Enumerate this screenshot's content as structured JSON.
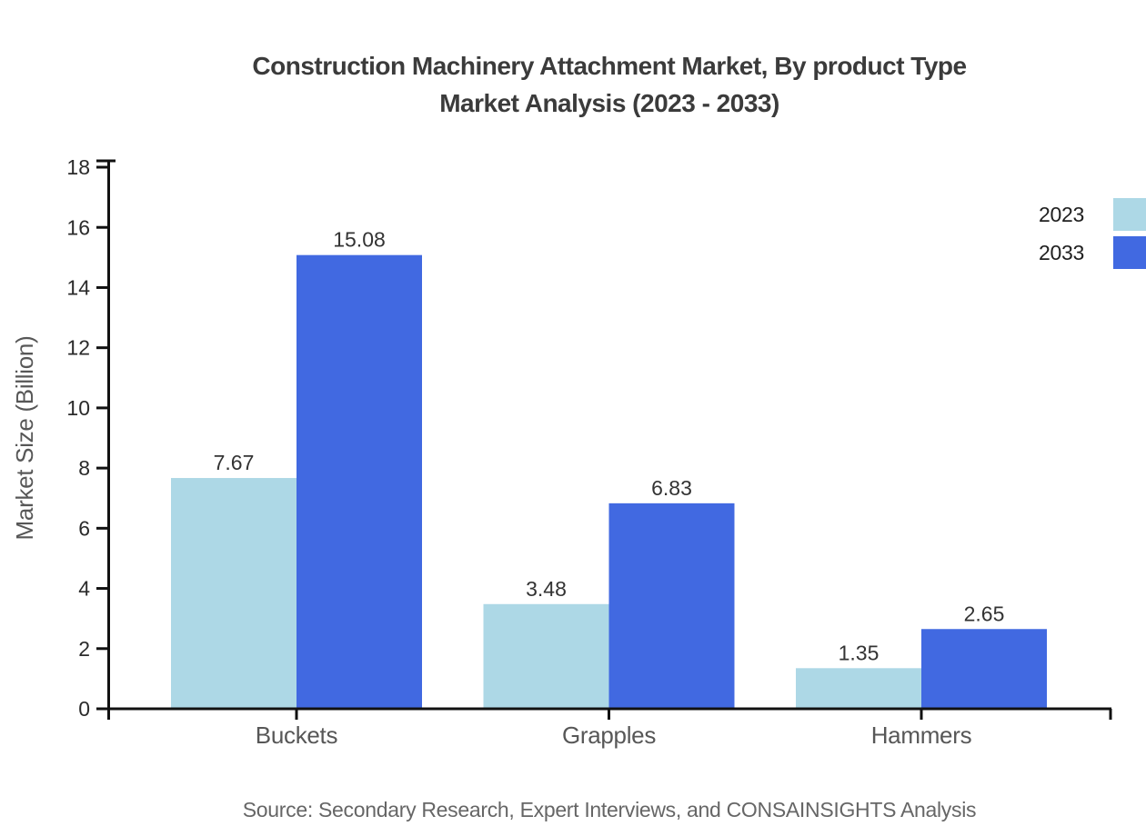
{
  "title": {
    "line1": "Construction Machinery Attachment Market, By product Type",
    "line2": "Market Analysis (2023 - 2033)"
  },
  "source_note": "Source: Secondary Research, Expert Interviews, and CONSAINSIGHTS Analysis",
  "colors": {
    "series_2023": "#ADD8E6",
    "series_2033": "#4169E1",
    "axis": "#111111",
    "title_text": "#3B3B3B",
    "tick_label": "#2B2B2B",
    "value_label": "#333333",
    "category_label": "#575757",
    "axis_title": "#575757",
    "source_text": "#666666",
    "background": "#FFFFFF"
  },
  "chart_data": {
    "type": "bar",
    "title": "Construction Machinery Attachment Market, By product Type Market Analysis (2023 - 2033)",
    "categories": [
      "Buckets",
      "Grapples",
      "Hammers"
    ],
    "series": [
      {
        "name": "2023",
        "color": "#ADD8E6",
        "values": [
          7.67,
          3.48,
          1.35
        ]
      },
      {
        "name": "2033",
        "color": "#4169E1",
        "values": [
          15.08,
          6.83,
          2.65
        ]
      }
    ],
    "xlabel": "",
    "ylabel": "Market Size (Billion)",
    "ylim": [
      0,
      18
    ],
    "yticks": [
      0,
      2,
      4,
      6,
      8,
      10,
      12,
      14,
      16,
      18
    ],
    "grid": false,
    "legend_position": "top-right",
    "value_labels": "each bar labeled with its value, 2 decimals, above bar top"
  },
  "legend": {
    "items": [
      "2023",
      "2033"
    ]
  }
}
